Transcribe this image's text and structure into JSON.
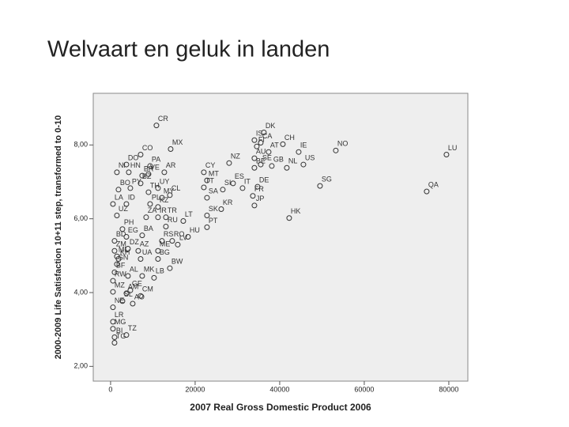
{
  "chart_data": {
    "type": "scatter",
    "title": "Welvaart en geluk in landen",
    "x_label": "2007 Real Gross Domestic Product 2006",
    "y_label": "2000-2009 Life Satisfaction 10+11 step, transformed to 0-10",
    "xlim": [
      -4100,
      84500
    ],
    "ylim": [
      1.6,
      9.4
    ],
    "xticks": [
      0,
      20000,
      40000,
      60000,
      80000
    ],
    "yticks": [
      {
        "value": 2,
        "label": "2,00"
      },
      {
        "value": 4,
        "label": "4,00"
      },
      {
        "value": 6,
        "label": "6,00"
      },
      {
        "value": 8,
        "label": "8,00"
      }
    ],
    "color": "#333333",
    "labels": [
      "CR",
      "DK",
      "IS",
      "FI",
      "CA",
      "CH",
      "AT",
      "AU",
      "IE",
      "NO",
      "LU",
      "SE",
      "US",
      "NZ",
      "BE",
      "GB",
      "NL",
      "MX",
      "CO",
      "PA",
      "DO",
      "CY",
      "SG",
      "QA",
      "ES",
      "IT",
      "DE",
      "FR",
      "JP",
      "HK",
      "KR",
      "SI",
      "MT",
      "TT",
      "SA",
      "SK",
      "PT",
      "HU",
      "LT",
      "CL",
      "PL",
      "UY",
      "AR",
      "VE",
      "BR",
      "BZ",
      "NI",
      "HN",
      "BO",
      "PY",
      "LA",
      "TH",
      "MY",
      "KZ",
      "ID",
      "UZ",
      "ZA",
      "TR",
      "IR",
      "RU",
      "BA",
      "RS",
      "RO",
      "LV",
      "ME",
      "AZ",
      "BG",
      "BW",
      "UA",
      "KH",
      "ZM",
      "ML",
      "BD",
      "PH",
      "EG",
      "DZ",
      "SN",
      "BF",
      "AL",
      "MK",
      "LB",
      "RW",
      "GE",
      "MZ",
      "AM",
      "CM",
      "SL",
      "AO",
      "NE",
      "LR",
      "MG",
      "TZ",
      "BI",
      "TG"
    ],
    "x": [
      10841,
      36262,
      34019,
      34579,
      35514,
      40748,
      37383,
      34019,
      44486,
      53271,
      79439,
      35514,
      45607,
      28037,
      34019,
      38131,
      41682,
      14206,
      7103,
      9346,
      3738,
      22056,
      49533,
      74766,
      28972,
      31215,
      34766,
      33645,
      34019,
      42243,
      26168,
      26542,
      22804,
      22056,
      22804,
      22804,
      22804,
      18318,
      17196,
      14019,
      9346,
      11215,
      12710,
      8972,
      7477,
      7103,
      1495,
      4299,
      1869,
      4673,
      561,
      8972,
      12150,
      11215,
      3738,
      1495,
      8411,
      13084,
      11215,
      13084,
      7477,
      12150,
      14579,
      15888,
      11215,
      6542,
      11215,
      14019,
      7103,
      1869,
      935,
      1495,
      935,
      2804,
      3738,
      4112,
      1495,
      935,
      4112,
      7477,
      10280,
      561,
      4673,
      561,
      3738,
      7103,
      2804,
      5234,
      561,
      561,
      561,
      3738,
      935,
      935
    ],
    "values": [
      8.53,
      8.34,
      8.13,
      7.96,
      8.06,
      8.02,
      7.81,
      7.64,
      7.81,
      7.85,
      7.74,
      7.47,
      7.47,
      7.51,
      7.38,
      7.43,
      7.38,
      7.89,
      7.74,
      7.43,
      7.47,
      7.26,
      6.89,
      6.74,
      6.96,
      6.83,
      6.87,
      6.62,
      6.36,
      6.02,
      6.26,
      6.79,
      7.04,
      6.85,
      6.57,
      6.09,
      5.77,
      5.51,
      5.94,
      6.64,
      6.4,
      6.83,
      7.26,
      7.21,
      7.17,
      6.96,
      7.26,
      7.26,
      6.79,
      6.83,
      6.4,
      6.72,
      6.57,
      6.32,
      6.4,
      6.09,
      6.04,
      6.04,
      6.04,
      5.79,
      5.55,
      5.4,
      5.4,
      5.3,
      5.13,
      5.13,
      4.91,
      4.66,
      4.91,
      4.91,
      5.13,
      4.98,
      5.4,
      5.72,
      5.51,
      5.19,
      4.77,
      4.55,
      4.45,
      4.45,
      4.4,
      4.32,
      4.06,
      4.02,
      3.98,
      3.91,
      3.77,
      3.7,
      3.6,
      3.21,
      3.02,
      2.85,
      2.79,
      2.64
    ]
  }
}
